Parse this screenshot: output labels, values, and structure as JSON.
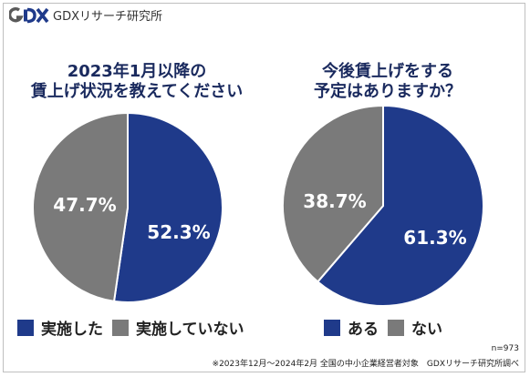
{
  "brand": {
    "logo_letters": "GDX",
    "name": "GDXリサーチ研究所"
  },
  "colors": {
    "primary": "#1f3a8a",
    "secondary": "#7a7a7a",
    "title": "#1a2a5e"
  },
  "chart_data": [
    {
      "type": "pie",
      "title": "2023年1月以降の\n賃上げ状況を教えてください",
      "title_lines": [
        "2023年1月以降の",
        "賃上げ状況を教えてください"
      ],
      "slices": [
        {
          "label": "実施した",
          "value": 52.3,
          "display": "52.3%",
          "color": "#1f3a8a"
        },
        {
          "label": "実施していない",
          "value": 47.7,
          "display": "47.7%",
          "color": "#7a7a7a"
        }
      ]
    },
    {
      "type": "pie",
      "title": "今後賃上げをする\n予定はありますか？",
      "title_lines": [
        "今後賃上げをする",
        "予定はありますか？"
      ],
      "slices": [
        {
          "label": "ある",
          "value": 61.3,
          "display": "61.3%",
          "color": "#1f3a8a"
        },
        {
          "label": "ない",
          "value": 38.7,
          "display": "38.7%",
          "color": "#7a7a7a"
        }
      ]
    }
  ],
  "footer": {
    "n": "n=973",
    "note": "※2023年12月～2024年2月 全国の中小企業経営者対象　GDXリサーチ研究所調べ"
  }
}
